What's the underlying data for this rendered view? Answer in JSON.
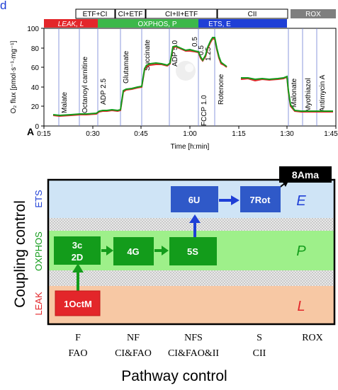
{
  "panel_letter_top": "d",
  "panel_letter_A": "A",
  "top_chart": {
    "ylabel": "O₂ flux [pmol·s⁻¹·mg⁻¹]",
    "xlabel": "Time [h:min]",
    "yticks": [
      "0",
      "20",
      "40",
      "60",
      "80",
      "100"
    ],
    "xticks": [
      "0:15",
      "0:30",
      "0:45",
      "1:00",
      "1:15",
      "1:30",
      "1:45"
    ],
    "substrate_boxes": [
      "ETF+CI",
      "CI+ETF",
      "CI+II+ETF",
      "CII",
      "ROX"
    ],
    "states": [
      {
        "label": "LEAK, L",
        "color": "#e3262a"
      },
      {
        "label": "OXPHOS, P",
        "color": "#3cb84a"
      },
      {
        "label": "ETS, E",
        "color": "#1f3fd6"
      }
    ],
    "rox_color": "#7f7f7f",
    "events": [
      "Malate",
      "Octanoyl carnitine",
      "ADP 2.5",
      "Glutamate",
      "Succinate",
      "ADP 5.0",
      "FCCP 1.0",
      "0.5",
      "0.5",
      "1.25",
      "Rotenone",
      "Malonate",
      "Myothiazol",
      "Antimycin A"
    ]
  },
  "diagram": {
    "ylabel": "Coupling control",
    "xlabel": "Pathway control",
    "bands": [
      {
        "name": "ETS",
        "symbol": "E",
        "color": "#1f3fd6"
      },
      {
        "name": "OXPHOS",
        "symbol": "P",
        "color": "#139c1b"
      },
      {
        "name": "LEAK",
        "symbol": "L",
        "color": "#e3262a"
      }
    ],
    "boxes": {
      "octm": "1OctM",
      "c3": "3c",
      "d2": "2D",
      "g4": "4G",
      "s5": "5S",
      "u6": "6U",
      "rot7": "7Rot",
      "ama8": "8Ama"
    },
    "pathways": [
      {
        "top": "F",
        "bottom": "FAO"
      },
      {
        "top": "NF",
        "bottom": "CI&FAO"
      },
      {
        "top": "NFS",
        "bottom": "CI&FAO&II"
      },
      {
        "top": "S",
        "bottom": "CII"
      },
      {
        "top": "ROX",
        "bottom": ""
      }
    ]
  }
}
